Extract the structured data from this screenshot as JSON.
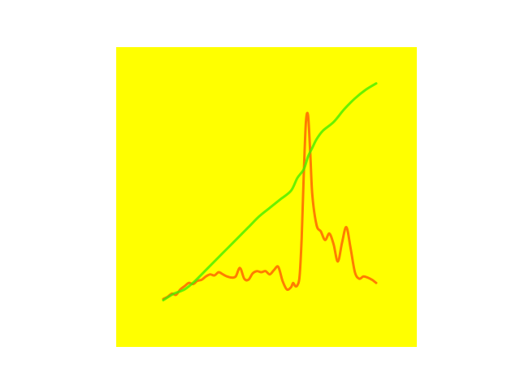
{
  "chart_data": {
    "type": "line",
    "title": "",
    "xlabel": "",
    "ylabel": "",
    "axes_visible": false,
    "grid": false,
    "legend": "none",
    "background_color": "#ffff00",
    "xlim": [
      0,
      100
    ],
    "ylim": [
      0,
      100
    ],
    "series": [
      {
        "color": "#ff6600",
        "opacity": 0.85,
        "x": [
          0,
          2,
          4,
          6,
          8,
          10,
          12,
          14,
          16,
          18,
          20,
          22,
          24,
          26,
          28,
          30,
          32,
          34,
          36,
          38,
          40,
          42,
          44,
          46,
          48,
          50,
          52,
          54,
          56,
          58,
          60,
          61,
          62,
          63,
          64,
          65,
          66,
          67,
          68,
          69,
          70,
          72,
          74,
          76,
          78,
          80,
          82,
          84,
          86,
          88,
          90,
          92,
          94,
          96,
          98,
          100
        ],
        "y": [
          1.5,
          2.5,
          4,
          3.5,
          6,
          7.5,
          9,
          8.5,
          10,
          10.5,
          12,
          13,
          12.5,
          14,
          13,
          12,
          11.5,
          12,
          16,
          11,
          10.5,
          13.5,
          14.5,
          14,
          14.5,
          13,
          15,
          16.5,
          10,
          6,
          7,
          9,
          7.5,
          8,
          12,
          30,
          60,
          84,
          87,
          70,
          50,
          36,
          33,
          29,
          32,
          27,
          19,
          28,
          35,
          25,
          14,
          11,
          12,
          11.5,
          10.5,
          9
        ]
      },
      {
        "color": "#44ee00",
        "opacity": 0.8,
        "x": [
          0,
          5,
          10,
          15,
          20,
          25,
          30,
          35,
          40,
          45,
          50,
          55,
          60,
          63,
          66,
          68,
          70,
          72,
          75,
          80,
          85,
          90,
          95,
          100
        ],
        "y": [
          1,
          4,
          6,
          10,
          15,
          20,
          25,
          30,
          35,
          40,
          44,
          48,
          52,
          58,
          62,
          68,
          72,
          76,
          80,
          84,
          90,
          95,
          99,
          102
        ]
      }
    ]
  }
}
